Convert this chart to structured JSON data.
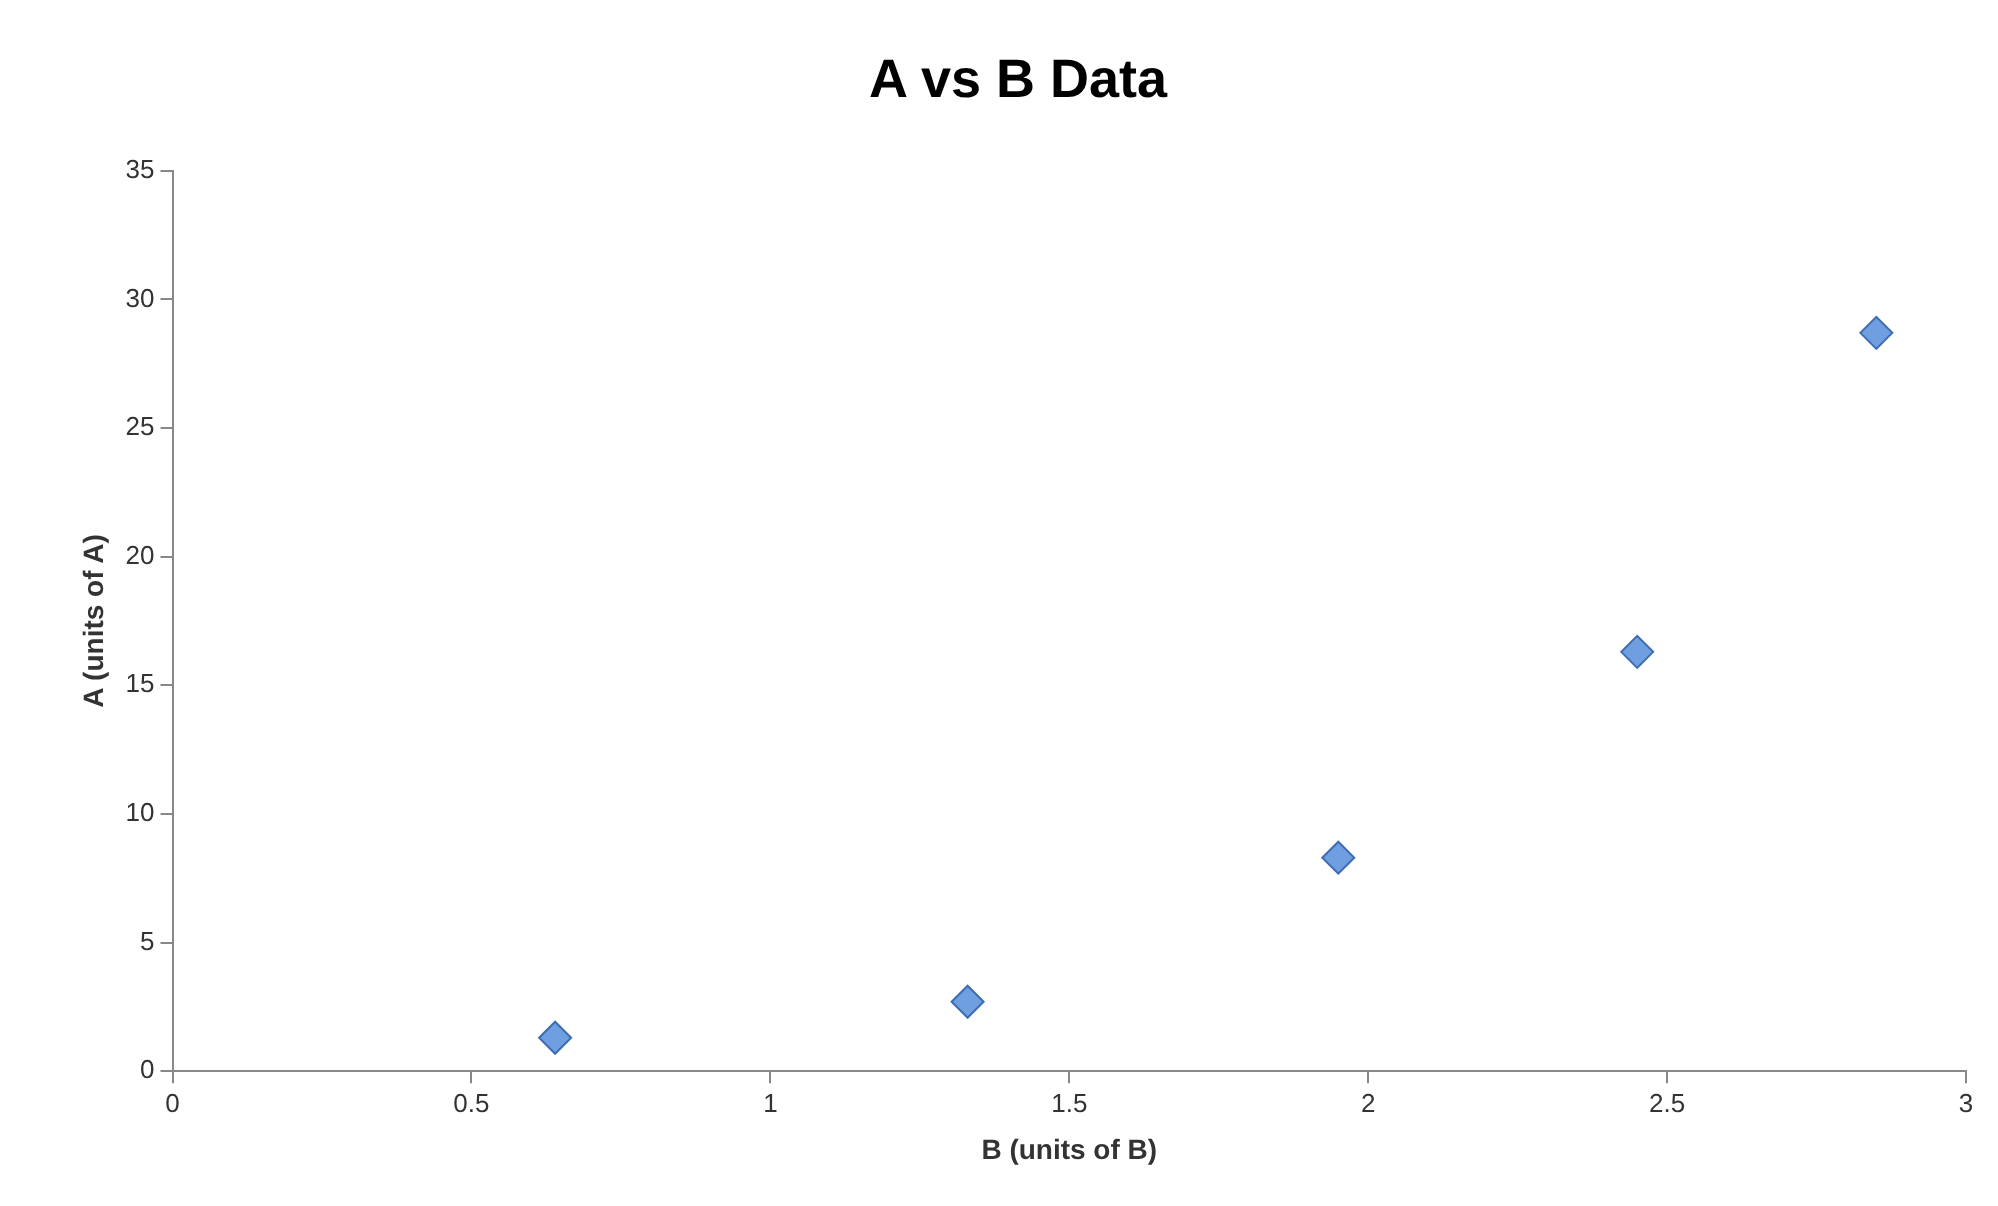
{
  "chart_data": {
    "type": "scatter",
    "title": "A vs B Data",
    "xlabel": "B (units of B)",
    "ylabel": "A (units of A)",
    "series": [
      {
        "color": "#6f9fe0",
        "x": [
          0.64,
          1.33,
          1.95,
          2.45,
          2.85
        ],
        "values": [
          1.3,
          2.7,
          8.3,
          16.3,
          28.7
        ]
      }
    ],
    "xlim": [
      0,
      3
    ],
    "xticks": [
      0,
      0.5,
      1,
      1.5,
      2,
      2.5,
      3
    ],
    "ylim": [
      0,
      35
    ],
    "yticks": [
      0,
      5,
      10,
      15,
      20,
      25,
      30,
      35
    ],
    "grid": false,
    "legend": false,
    "marker": "diamond"
  }
}
